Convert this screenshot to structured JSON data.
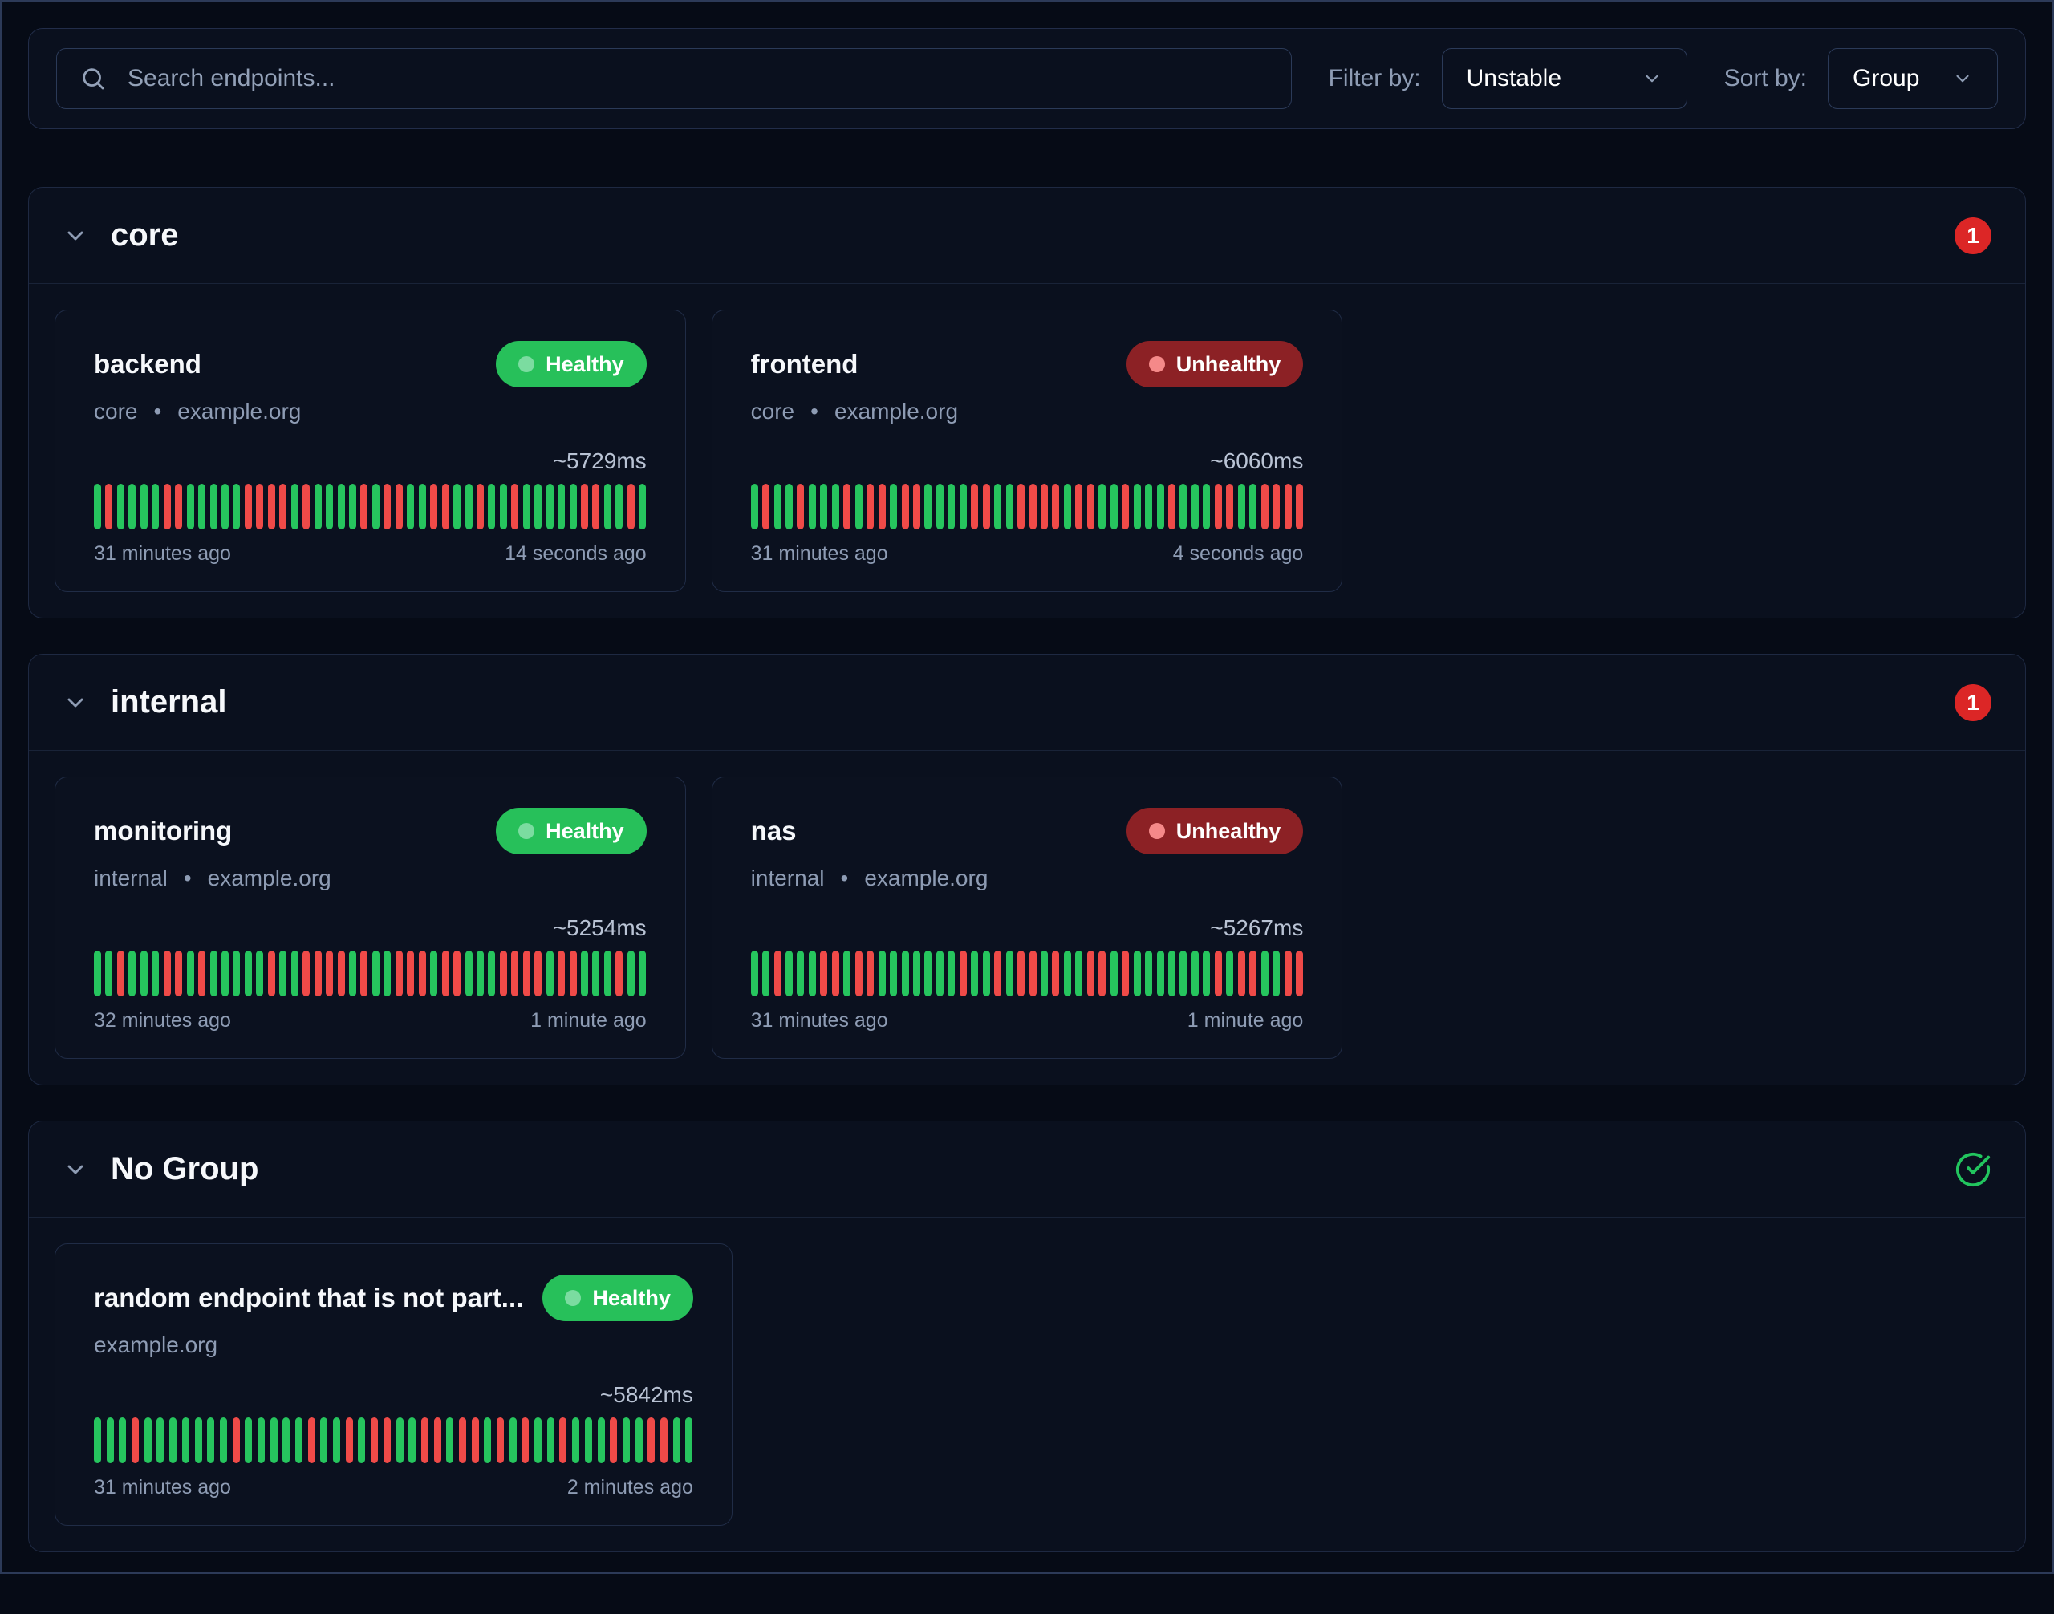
{
  "ui": {
    "separator": "•"
  },
  "colors": {
    "page_bg": "#060b16",
    "panel_bg": "#0a101e",
    "card_bg": "#0b111f",
    "healthy_badge": "#27c05a",
    "unhealthy_badge": "#8c2125",
    "bar_green": "#26c55e",
    "bar_red": "#ef4a48",
    "count_badge": "#dc2626",
    "check_icon": "#22c55e",
    "muted_text": "#8e9cb4"
  },
  "icons": [
    "search-icon",
    "chevron-down-icon",
    "status-dot-icon",
    "check-circle-icon"
  ],
  "toolbar": {
    "search_placeholder": "Search endpoints...",
    "filter_label": "Filter by:",
    "filter_value": "Unstable",
    "sort_label": "Sort by:",
    "sort_value": "Group"
  },
  "groups": [
    {
      "name": "core",
      "unhealthy_count": "1",
      "endpoints": [
        {
          "name": "backend",
          "status": "Healthy",
          "group": "core",
          "host": "example.org",
          "response_time": "~5729ms",
          "oldest": "31 minutes ago",
          "newest": "14 seconds ago",
          "history": "GRGGGGRRGGGGGRRRRGRGGGGRGRRGGRRGGRGGRGGGGGRRGGRG"
        },
        {
          "name": "frontend",
          "status": "Unhealthy",
          "group": "core",
          "host": "example.org",
          "response_time": "~6060ms",
          "oldest": "31 minutes ago",
          "newest": "4 seconds ago",
          "history": "GRGGRGGGRGRRGRRGGGGRRGGRRRRGRRGGRGGGRGGGRRGGRRRR"
        }
      ]
    },
    {
      "name": "internal",
      "unhealthy_count": "1",
      "endpoints": [
        {
          "name": "monitoring",
          "status": "Healthy",
          "group": "internal",
          "host": "example.org",
          "response_time": "~5254ms",
          "oldest": "32 minutes ago",
          "newest": "1 minute ago",
          "history": "GGRGGGRRGRGGGGGRGGRRRRGRGGRRRGRRGGGRRRRGRRGGGRGG"
        },
        {
          "name": "nas",
          "status": "Unhealthy",
          "group": "internal",
          "host": "example.org",
          "response_time": "~5267ms",
          "oldest": "31 minutes ago",
          "newest": "1 minute ago",
          "history": "GGRGGGRRGRRGGGGGGGRGGRGRRGRGGRRGRGGGGGGGRGRRGGRR"
        }
      ]
    },
    {
      "name": "No Group",
      "endpoints": [
        {
          "name": "random endpoint that is not part...",
          "status": "Healthy",
          "group": "",
          "host": "example.org",
          "response_time": "~5842ms",
          "oldest": "31 minutes ago",
          "newest": "2 minutes ago",
          "history": "GGGRGGGGGGGRGGGGGRGGRGRRGGRRGRRGRGRGGRGGGRGGRRGG"
        }
      ]
    }
  ]
}
